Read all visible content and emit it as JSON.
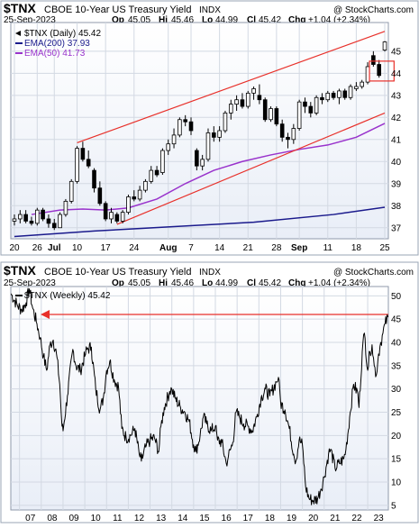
{
  "chart_data": [
    {
      "type": "candlestick",
      "header": {
        "symbol": "$TNX",
        "title": "CBOE 10-Year US Treasury Yield",
        "exchange": "INDX",
        "site": "@ StockCharts.com",
        "date": "25-Sep-2023",
        "op_label": "Op",
        "op": "45.05",
        "hi_label": "Hi",
        "hi": "45.46",
        "lo_label": "Lo",
        "lo": "44.99",
        "cl_label": "Cl",
        "cl": "45.42",
        "chg_label": "Chg",
        "chg": "+1.04 (+2.34%)"
      },
      "legend": [
        {
          "text": "$TNX (Daily) 45.42",
          "color": "#000000"
        },
        {
          "text": "EMA(200) 37.93",
          "color": "#1a1a8c"
        },
        {
          "text": "EMA(50) 41.73",
          "color": "#9933cc"
        }
      ],
      "x_ticks": [
        {
          "label": "20",
          "i": 0
        },
        {
          "label": "26",
          "i": 4
        },
        {
          "label": "Jul",
          "i": 7,
          "bold": true
        },
        {
          "label": "10",
          "i": 11
        },
        {
          "label": "17",
          "i": 16
        },
        {
          "label": "24",
          "i": 21
        },
        {
          "label": "Aug",
          "i": 27,
          "bold": true
        },
        {
          "label": "7",
          "i": 31
        },
        {
          "label": "14",
          "i": 36
        },
        {
          "label": "21",
          "i": 41
        },
        {
          "label": "28",
          "i": 46
        },
        {
          "label": "Sep",
          "i": 50,
          "bold": true
        },
        {
          "label": "11",
          "i": 55
        },
        {
          "label": "18",
          "i": 60
        },
        {
          "label": "25",
          "i": 65
        }
      ],
      "ylim": [
        36.5,
        46.3
      ],
      "y_ticks": [
        37,
        38,
        39,
        40,
        41,
        42,
        43,
        44,
        45
      ],
      "candles": [
        [
          37.3,
          37.6,
          37.1,
          37.4
        ],
        [
          37.4,
          37.8,
          37.2,
          37.6
        ],
        [
          37.6,
          37.8,
          37.2,
          37.3
        ],
        [
          37.3,
          37.5,
          37.1,
          37.2
        ],
        [
          37.2,
          37.9,
          37.1,
          37.8
        ],
        [
          37.8,
          37.9,
          37.3,
          37.4
        ],
        [
          37.4,
          37.6,
          37.0,
          37.2
        ],
        [
          37.2,
          37.4,
          36.9,
          37.0
        ],
        [
          37.0,
          37.7,
          37.0,
          37.6
        ],
        [
          37.6,
          38.3,
          37.5,
          38.2
        ],
        [
          38.2,
          39.2,
          38.1,
          39.1
        ],
        [
          39.1,
          40.7,
          39.0,
          40.6
        ],
        [
          40.6,
          40.9,
          40.0,
          40.1
        ],
        [
          40.1,
          40.5,
          39.7,
          39.8
        ],
        [
          39.6,
          39.7,
          38.6,
          38.8
        ],
        [
          38.8,
          39.1,
          38.0,
          38.1
        ],
        [
          38.1,
          38.2,
          37.3,
          37.4
        ],
        [
          37.4,
          37.9,
          37.2,
          37.7
        ],
        [
          37.6,
          37.7,
          37.2,
          37.3
        ],
        [
          37.3,
          37.8,
          37.2,
          37.7
        ],
        [
          37.7,
          38.5,
          37.6,
          38.4
        ],
        [
          38.4,
          38.7,
          38.2,
          38.3
        ],
        [
          38.3,
          38.9,
          38.2,
          38.7
        ],
        [
          38.7,
          39.2,
          38.6,
          39.1
        ],
        [
          39.1,
          39.8,
          39.0,
          39.6
        ],
        [
          39.6,
          39.8,
          39.3,
          39.4
        ],
        [
          39.5,
          40.6,
          39.4,
          40.5
        ],
        [
          40.5,
          41.0,
          40.3,
          40.8
        ],
        [
          40.8,
          41.5,
          40.6,
          41.2
        ],
        [
          41.2,
          42.0,
          41.1,
          41.9
        ],
        [
          41.9,
          42.1,
          41.6,
          41.8
        ],
        [
          41.8,
          42.0,
          41.2,
          41.4
        ],
        [
          40.5,
          40.6,
          39.6,
          39.8
        ],
        [
          39.8,
          40.3,
          39.6,
          40.1
        ],
        [
          40.1,
          41.5,
          40.0,
          41.3
        ],
        [
          41.3,
          41.6,
          40.9,
          41.1
        ],
        [
          41.1,
          41.6,
          40.9,
          41.4
        ],
        [
          41.4,
          42.3,
          41.3,
          42.2
        ],
        [
          42.2,
          42.8,
          41.9,
          42.6
        ],
        [
          42.6,
          43.0,
          42.3,
          42.8
        ],
        [
          42.8,
          43.1,
          42.4,
          42.5
        ],
        [
          42.5,
          43.2,
          42.4,
          43.1
        ],
        [
          43.1,
          43.4,
          42.8,
          43.3
        ],
        [
          43.0,
          43.5,
          42.6,
          42.8
        ],
        [
          42.8,
          42.9,
          41.8,
          41.9
        ],
        [
          41.9,
          42.5,
          41.8,
          42.4
        ],
        [
          42.4,
          42.5,
          41.6,
          41.7
        ],
        [
          41.7,
          41.9,
          40.9,
          41.1
        ],
        [
          41.1,
          41.3,
          40.6,
          41.0
        ],
        [
          41.0,
          41.7,
          40.8,
          41.5
        ],
        [
          41.5,
          42.8,
          41.4,
          42.7
        ],
        [
          42.7,
          42.9,
          42.2,
          42.5
        ],
        [
          42.5,
          42.7,
          42.0,
          42.2
        ],
        [
          42.2,
          43.0,
          42.1,
          42.9
        ],
        [
          42.9,
          43.1,
          42.6,
          42.8
        ],
        [
          42.8,
          43.2,
          42.7,
          43.1
        ],
        [
          43.1,
          43.2,
          42.8,
          42.9
        ],
        [
          42.9,
          43.3,
          42.6,
          43.2
        ],
        [
          43.2,
          43.3,
          42.8,
          42.9
        ],
        [
          42.9,
          43.5,
          42.8,
          43.4
        ],
        [
          43.3,
          43.6,
          43.2,
          43.4
        ],
        [
          43.4,
          43.7,
          43.3,
          43.6
        ],
        [
          43.6,
          44.5,
          43.5,
          44.3
        ],
        [
          44.8,
          45.0,
          44.3,
          44.4
        ],
        [
          44.4,
          44.6,
          43.8,
          43.9
        ],
        [
          45.05,
          45.46,
          44.99,
          45.42
        ]
      ],
      "ema200": [
        [
          0,
          36.6
        ],
        [
          14,
          36.85
        ],
        [
          28,
          37.05
        ],
        [
          42,
          37.25
        ],
        [
          56,
          37.6
        ],
        [
          65,
          37.93
        ]
      ],
      "ema50": [
        [
          3,
          37.6
        ],
        [
          8,
          37.8
        ],
        [
          12,
          37.85
        ],
        [
          16,
          37.8
        ],
        [
          20,
          37.9
        ],
        [
          25,
          38.3
        ],
        [
          30,
          39.0
        ],
        [
          35,
          39.6
        ],
        [
          40,
          40.0
        ],
        [
          45,
          40.3
        ],
        [
          50,
          40.55
        ],
        [
          55,
          40.75
        ],
        [
          60,
          41.1
        ],
        [
          65,
          41.73
        ]
      ],
      "trendlines": [
        {
          "points": [
            [
              11,
              40.85
            ],
            [
              65,
              45.9
            ]
          ],
          "color": "#e8302a"
        },
        {
          "points": [
            [
              18,
              37.15
            ],
            [
              65,
              42.2
            ]
          ],
          "color": "#e8302a"
        }
      ],
      "marker_box": {
        "i0": 62,
        "i1": 66,
        "y0": 43.65,
        "y1": 44.55,
        "color": "#e8302a"
      }
    },
    {
      "type": "line",
      "header": {
        "symbol": "$TNX",
        "title": "CBOE 10-Year US Treasury Yield",
        "exchange": "INDX",
        "site": "@ StockCharts.com",
        "date": "25-Sep-2023",
        "op_label": "Op",
        "op": "45.05",
        "hi_label": "Hi",
        "hi": "45.46",
        "lo_label": "Lo",
        "lo": "44.99",
        "cl_label": "Cl",
        "cl": "45.42",
        "chg_label": "Chg",
        "chg": "+1.04 (+2.34%)"
      },
      "legend": [
        {
          "text": "$TNX (Weekly) 45.42",
          "color": "#000000"
        }
      ],
      "x_ticks": [
        "07",
        "08",
        "09",
        "10",
        "11",
        "12",
        "13",
        "14",
        "15",
        "16",
        "17",
        "18",
        "19",
        "20",
        "21",
        "22",
        "23"
      ],
      "x_start": 2006.6,
      "x_end": 2023.95,
      "ylim": [
        4,
        52
      ],
      "y_ticks": [
        5,
        10,
        15,
        20,
        25,
        30,
        35,
        40,
        45,
        50
      ],
      "series": [
        [
          2006.6,
          50.5
        ],
        [
          2006.9,
          48.0
        ],
        [
          2007.1,
          47.0
        ],
        [
          2007.3,
          48.5
        ],
        [
          2007.45,
          51.5
        ],
        [
          2007.6,
          47.5
        ],
        [
          2007.8,
          44.0
        ],
        [
          2007.95,
          41.0
        ],
        [
          2008.1,
          37.0
        ],
        [
          2008.25,
          34.0
        ],
        [
          2008.4,
          39.5
        ],
        [
          2008.55,
          40.5
        ],
        [
          2008.7,
          37.5
        ],
        [
          2008.85,
          31.0
        ],
        [
          2008.95,
          22.0
        ],
        [
          2009.0,
          21.0
        ],
        [
          2009.2,
          28.5
        ],
        [
          2009.45,
          38.5
        ],
        [
          2009.6,
          35.0
        ],
        [
          2009.8,
          34.0
        ],
        [
          2010.0,
          37.0
        ],
        [
          2010.1,
          38.5
        ],
        [
          2010.3,
          39.0
        ],
        [
          2010.5,
          30.0
        ],
        [
          2010.7,
          25.5
        ],
        [
          2010.85,
          28.0
        ],
        [
          2011.0,
          34.0
        ],
        [
          2011.15,
          36.0
        ],
        [
          2011.35,
          32.0
        ],
        [
          2011.55,
          30.5
        ],
        [
          2011.7,
          21.5
        ],
        [
          2011.9,
          19.5
        ],
        [
          2012.1,
          20.0
        ],
        [
          2012.3,
          21.5
        ],
        [
          2012.5,
          16.0
        ],
        [
          2012.6,
          14.5
        ],
        [
          2012.8,
          17.5
        ],
        [
          2013.0,
          19.0
        ],
        [
          2013.2,
          19.5
        ],
        [
          2013.4,
          16.5
        ],
        [
          2013.5,
          22.0
        ],
        [
          2013.65,
          26.0
        ],
        [
          2013.9,
          29.5
        ],
        [
          2014.0,
          30.0
        ],
        [
          2014.15,
          28.0
        ],
        [
          2014.4,
          26.0
        ],
        [
          2014.6,
          25.0
        ],
        [
          2014.8,
          23.0
        ],
        [
          2015.0,
          18.0
        ],
        [
          2015.1,
          16.5
        ],
        [
          2015.3,
          20.0
        ],
        [
          2015.45,
          24.0
        ],
        [
          2015.6,
          22.5
        ],
        [
          2015.8,
          21.0
        ],
        [
          2016.0,
          22.0
        ],
        [
          2016.1,
          19.0
        ],
        [
          2016.3,
          18.5
        ],
        [
          2016.5,
          14.0
        ],
        [
          2016.6,
          15.5
        ],
        [
          2016.8,
          18.5
        ],
        [
          2016.95,
          25.0
        ],
        [
          2017.1,
          24.0
        ],
        [
          2017.3,
          22.5
        ],
        [
          2017.5,
          22.0
        ],
        [
          2017.7,
          21.0
        ],
        [
          2017.9,
          24.0
        ],
        [
          2018.1,
          28.0
        ],
        [
          2018.3,
          30.0
        ],
        [
          2018.5,
          28.5
        ],
        [
          2018.8,
          31.5
        ],
        [
          2018.9,
          32.5
        ],
        [
          2019.0,
          27.0
        ],
        [
          2019.2,
          25.5
        ],
        [
          2019.4,
          21.5
        ],
        [
          2019.6,
          16.0
        ],
        [
          2019.7,
          14.5
        ],
        [
          2019.85,
          19.0
        ],
        [
          2020.0,
          18.0
        ],
        [
          2020.15,
          9.0
        ],
        [
          2020.3,
          6.5
        ],
        [
          2020.5,
          6.0
        ],
        [
          2020.7,
          6.5
        ],
        [
          2020.85,
          8.5
        ],
        [
          2021.0,
          11.0
        ],
        [
          2021.2,
          16.0
        ],
        [
          2021.3,
          17.0
        ],
        [
          2021.5,
          13.0
        ],
        [
          2021.7,
          14.0
        ],
        [
          2021.9,
          15.0
        ],
        [
          2022.0,
          17.0
        ],
        [
          2022.2,
          25.0
        ],
        [
          2022.35,
          31.0
        ],
        [
          2022.55,
          29.0
        ],
        [
          2022.6,
          26.0
        ],
        [
          2022.75,
          38.0
        ],
        [
          2022.85,
          42.0
        ],
        [
          2023.0,
          34.0
        ],
        [
          2023.1,
          38.0
        ],
        [
          2023.2,
          39.5
        ],
        [
          2023.3,
          35.0
        ],
        [
          2023.4,
          33.0
        ],
        [
          2023.5,
          37.5
        ],
        [
          2023.6,
          40.0
        ],
        [
          2023.7,
          42.0
        ],
        [
          2023.8,
          44.0
        ],
        [
          2023.95,
          45.42
        ]
      ],
      "reference_line": {
        "y": 46.0,
        "color": "#e8302a"
      }
    }
  ]
}
